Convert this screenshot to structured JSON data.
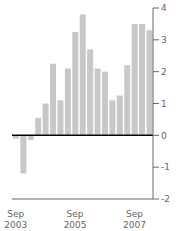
{
  "chart_data": {
    "type": "bar",
    "categories": [
      "Sep\n2003",
      null,
      null,
      null,
      null,
      null,
      null,
      null,
      "Sep\n2005",
      null,
      null,
      null,
      null,
      null,
      null,
      null,
      "Sep\n2007",
      null,
      null
    ],
    "values": [
      -0.1,
      -1.2,
      -0.15,
      0.55,
      1.0,
      2.25,
      1.1,
      2.1,
      3.25,
      3.8,
      2.7,
      2.1,
      2.0,
      1.1,
      1.25,
      2.2,
      3.5,
      3.5,
      3.3
    ],
    "color": "#c8c8c8",
    "ylim": [
      -2,
      4
    ],
    "yticks": [
      -2,
      -1,
      0,
      1,
      2,
      3,
      4
    ],
    "grid": false
  }
}
